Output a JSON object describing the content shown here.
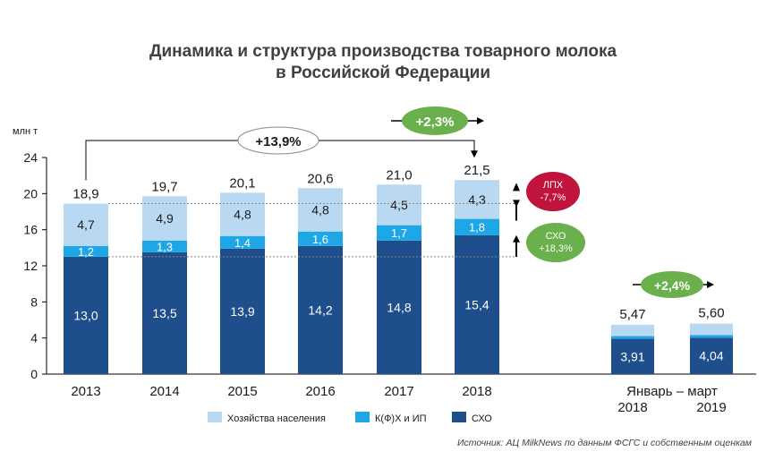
{
  "title_line1": "Динамика и структура производства товарного молока",
  "title_line2": "в Российской Федерации",
  "source": "Источник: АЦ MilkNews по данным ФСГС и собственным оценкам",
  "colors": {
    "households": "#b9d9f2",
    "kfh": "#1ea7e6",
    "sho": "#1f4e8c",
    "green": "#6ab04c",
    "red": "#c0143c"
  },
  "annotations": {
    "growth_2013_2018": "+13,9%",
    "growth_2017_2018": "+2,3%",
    "growth_q1": "+2,4%",
    "lph_label": "ЛПХ",
    "lph_value": "-7,7%",
    "sho_label": "СХО",
    "sho_value": "+18,3%"
  },
  "chart_data": {
    "type": "bar",
    "stacked": true,
    "ylabel": "млн т",
    "ylim": [
      0,
      24
    ],
    "yticks": [
      "0",
      "4",
      "8",
      "12",
      "16",
      "20",
      "24"
    ],
    "categories": [
      "2013",
      "2014",
      "2015",
      "2016",
      "2017",
      "2018"
    ],
    "category_group_label": "",
    "series": [
      {
        "name": "СХО",
        "color": "#1f4e8c",
        "values": [
          13.0,
          13.5,
          13.9,
          14.2,
          14.8,
          15.4
        ],
        "labels": [
          "13,0",
          "13,5",
          "13,9",
          "14,2",
          "14,8",
          "15,4"
        ]
      },
      {
        "name": "К(Ф)Х и ИП",
        "color": "#1ea7e6",
        "values": [
          1.2,
          1.3,
          1.4,
          1.6,
          1.7,
          1.8
        ],
        "labels": [
          "1,2",
          "1,3",
          "1,4",
          "1,6",
          "1,7",
          "1,8"
        ]
      },
      {
        "name": "Хозяйства населения",
        "color": "#b9d9f2",
        "values": [
          4.7,
          4.9,
          4.8,
          4.8,
          4.5,
          4.3
        ],
        "labels": [
          "4,7",
          "4,9",
          "4,8",
          "4,8",
          "4,5",
          "4,3"
        ]
      }
    ],
    "totals": [
      "18,9",
      "19,7",
      "20,1",
      "20,6",
      "21,0",
      "21,5"
    ],
    "quarter": {
      "group_label": "Январь – март",
      "categories": [
        "2018",
        "2019"
      ],
      "totals_values": [
        5.47,
        5.6
      ],
      "totals": [
        "5,47",
        "5,60"
      ],
      "sho_values": [
        3.91,
        4.04
      ],
      "sho_labels": [
        "3,91",
        "4,04"
      ],
      "kfh_values": [
        0.3,
        0.3
      ],
      "households_values": [
        1.26,
        1.26
      ]
    },
    "legend": [
      "Хозяйства населения",
      "К(Ф)Х и ИП",
      "СХО"
    ],
    "legend_placement": "bottom"
  }
}
